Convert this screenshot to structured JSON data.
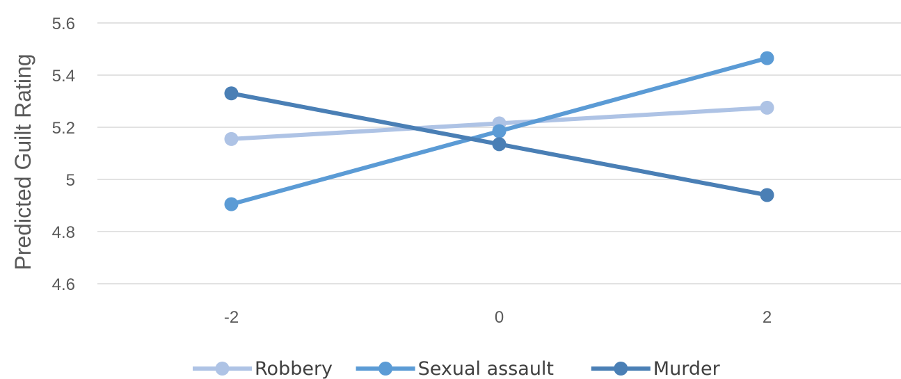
{
  "chart_data": {
    "type": "line",
    "title": "",
    "xlabel": "",
    "ylabel": "Predicted Guilt Rating",
    "x": [
      -2,
      0,
      2
    ],
    "x_tick_labels": [
      "-2",
      "0",
      "2"
    ],
    "y_ticks": [
      4.6,
      4.8,
      5,
      5.2,
      5.4,
      5.6
    ],
    "y_tick_labels": [
      "4.6",
      "4.8",
      "5",
      "5.2",
      "5.4",
      "5.6"
    ],
    "ylim": [
      4.6,
      5.6
    ],
    "xlim": [
      -3,
      3
    ],
    "grid": true,
    "legend_position": "bottom",
    "series": [
      {
        "name": "Robbery",
        "color": "#aec3e5",
        "values": [
          5.155,
          5.215,
          5.275
        ]
      },
      {
        "name": "Sexual assault",
        "color": "#5b9bd5",
        "values": [
          4.905,
          5.185,
          5.465
        ]
      },
      {
        "name": "Murder",
        "color": "#4a7fb5",
        "values": [
          5.33,
          5.135,
          4.94
        ]
      }
    ]
  }
}
